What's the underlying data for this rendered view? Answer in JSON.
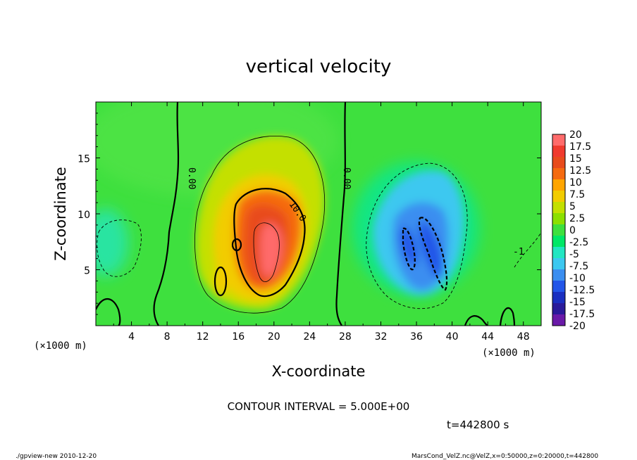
{
  "chart_data": {
    "type": "heatmap",
    "title": "vertical velocity",
    "xlabel": "X-coordinate",
    "ylabel": "Z-coordinate",
    "x_unit_left": "(×1000 m)",
    "x_unit_right": "(×1000 m)",
    "xlim": [
      0,
      50
    ],
    "ylim": [
      0,
      20
    ],
    "x_ticks": [
      4,
      8,
      12,
      16,
      20,
      24,
      28,
      32,
      36,
      40,
      44,
      48
    ],
    "y_ticks": [
      5,
      10,
      15
    ],
    "contour_interval_text": "CONTOUR INTERVAL = 5.000E+00",
    "time_text": "t=442800 s",
    "contour_labels": [
      "0.00",
      "0.00",
      "10.0",
      "-1"
    ],
    "colorbar": {
      "levels": [
        "20",
        "17.5",
        "15",
        "12.5",
        "10",
        "7.5",
        "5",
        "2.5",
        "0",
        "-2.5",
        "-5",
        "-7.5",
        "-10",
        "-12.5",
        "-15",
        "-17.5",
        "-20"
      ],
      "colors": [
        "#ff6b6b",
        "#f03a2e",
        "#e84b1c",
        "#f56a10",
        "#ffa500",
        "#f2cc00",
        "#c4e000",
        "#8ce000",
        "#3ee03e",
        "#00e866",
        "#22e6c2",
        "#3cc8f0",
        "#3b8ef0",
        "#2255e8",
        "#1a2fc0",
        "#2a1a9a",
        "#6a1aa8"
      ]
    },
    "features": [
      {
        "name": "updraft-core",
        "x": 19.5,
        "z": 7,
        "w": 19
      },
      {
        "name": "downdraft-band-1",
        "x": 35,
        "z": 6.5,
        "w": -11
      },
      {
        "name": "downdraft-band-2",
        "x": 37.5,
        "z": 6,
        "w": -11
      },
      {
        "name": "weak-downdraft-left",
        "x": 2,
        "z": 7.5,
        "w": -5.5
      }
    ]
  },
  "footer": {
    "left": "./gpview-new   2010-12-20",
    "right": "MarsCond_VelZ.nc@VelZ,x=0:50000,z=0:20000,t=442800"
  }
}
